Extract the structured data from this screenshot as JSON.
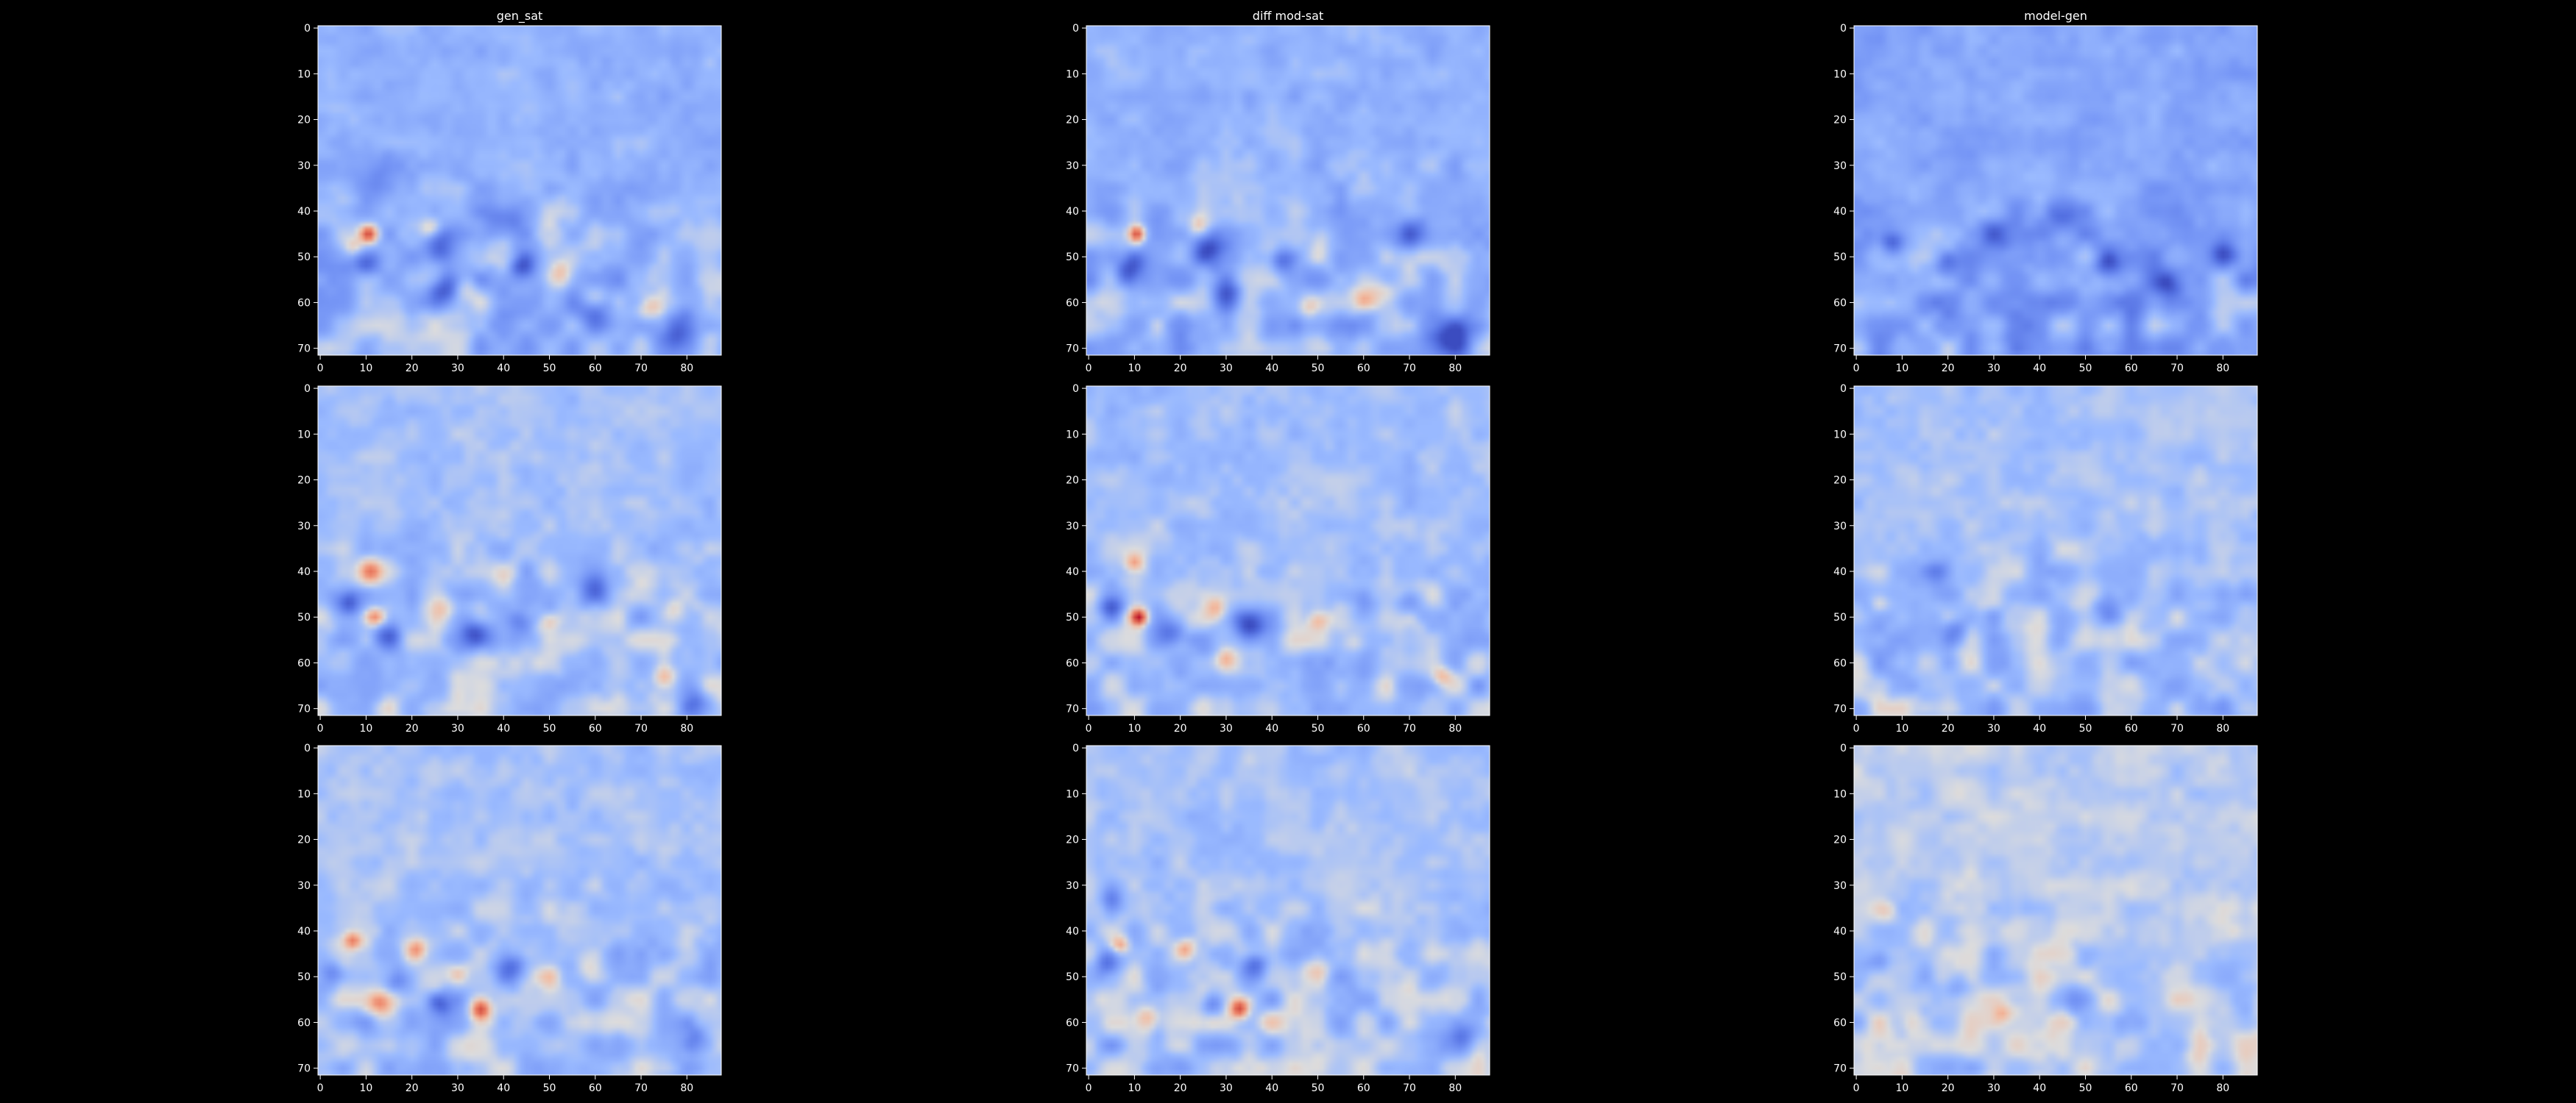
{
  "figure": {
    "background": "#000000",
    "text_color": "#ffffff",
    "colormap": "coolwarm",
    "columns": [
      "gen_sat",
      "diff mod-sat",
      "model-gen"
    ]
  },
  "chart_data": [
    {
      "type": "heatmap",
      "row": 0,
      "col": 0,
      "title": "gen_sat",
      "xlim": [
        0,
        88
      ],
      "ylim": [
        72,
        0
      ],
      "xticks": [
        "0",
        "10",
        "20",
        "30",
        "40",
        "50",
        "60",
        "70",
        "80"
      ],
      "yticks": [
        "0",
        "10",
        "20",
        "30",
        "40",
        "50",
        "60",
        "70"
      ],
      "background_level": -0.3,
      "blobs": [
        [
          10.5,
          45,
          0.95,
          1.4
        ],
        [
          7,
          48,
          0.35,
          1.6
        ],
        [
          24,
          44,
          0.45,
          1.5
        ],
        [
          52,
          54,
          0.55,
          2.2
        ],
        [
          60,
          59,
          0.45,
          2.0
        ],
        [
          72,
          61,
          0.5,
          2.0
        ],
        [
          32,
          57,
          0.35,
          1.8
        ],
        [
          50,
          45,
          0.3,
          2.2
        ],
        [
          40,
          52,
          0.2,
          2.5
        ],
        [
          10,
          51,
          -0.7,
          2.0
        ],
        [
          26,
          48,
          -0.55,
          2.2
        ],
        [
          27,
          57,
          -0.6,
          2.4
        ],
        [
          44,
          52,
          -0.55,
          2.0
        ],
        [
          40,
          42,
          -0.45,
          2.6
        ],
        [
          78,
          66,
          -0.55,
          3.0
        ],
        [
          12,
          32,
          -0.3,
          4.0
        ],
        [
          60,
          62,
          -0.4,
          2.8
        ]
      ]
    },
    {
      "type": "heatmap",
      "row": 0,
      "col": 1,
      "title": "diff mod-sat",
      "xlim": [
        0,
        88
      ],
      "ylim": [
        72,
        0
      ],
      "xticks": [
        "0",
        "10",
        "20",
        "30",
        "40",
        "50",
        "60",
        "70",
        "80"
      ],
      "yticks": [
        "0",
        "10",
        "20",
        "30",
        "40",
        "50",
        "60",
        "70"
      ],
      "background_level": -0.3,
      "blobs": [
        [
          10.5,
          45,
          1.0,
          1.3
        ],
        [
          24,
          43,
          0.45,
          1.5
        ],
        [
          51,
          46,
          0.3,
          2.2
        ],
        [
          60,
          59,
          0.4,
          1.8
        ],
        [
          48,
          61,
          0.3,
          1.6
        ],
        [
          64,
          57,
          0.25,
          2.0
        ],
        [
          10,
          51,
          -0.6,
          2.0
        ],
        [
          26,
          48,
          -0.55,
          2.2
        ],
        [
          42,
          51,
          -0.55,
          2.0
        ],
        [
          80,
          68,
          -0.75,
          2.8
        ],
        [
          70,
          45,
          -0.5,
          2.4
        ],
        [
          30,
          58,
          -0.4,
          2.2
        ],
        [
          8,
          54,
          -0.4,
          1.8
        ]
      ]
    },
    {
      "type": "heatmap",
      "row": 0,
      "col": 2,
      "title": "model-gen",
      "xlim": [
        0,
        88
      ],
      "ylim": [
        72,
        0
      ],
      "xticks": [
        "0",
        "10",
        "20",
        "30",
        "40",
        "50",
        "60",
        "70",
        "80"
      ],
      "yticks": [
        "0",
        "10",
        "20",
        "30",
        "40",
        "50",
        "60",
        "70"
      ],
      "background_level": -0.38,
      "blobs": [
        [
          8,
          47,
          -0.5,
          1.8
        ],
        [
          20,
          52,
          -0.45,
          2.0
        ],
        [
          35,
          55,
          -0.4,
          2.2
        ],
        [
          55,
          52,
          -0.45,
          2.0
        ],
        [
          68,
          56,
          -0.45,
          2.0
        ],
        [
          80,
          49,
          -0.45,
          2.0
        ],
        [
          45,
          42,
          -0.35,
          2.5
        ],
        [
          30,
          45,
          -0.35,
          2.2
        ],
        [
          60,
          60,
          -0.35,
          2.2
        ]
      ]
    },
    {
      "type": "heatmap",
      "row": 1,
      "col": 0,
      "title": "",
      "xlim": [
        0,
        88
      ],
      "ylim": [
        72,
        0
      ],
      "xticks": [
        "0",
        "10",
        "20",
        "30",
        "40",
        "50",
        "60",
        "70",
        "80"
      ],
      "yticks": [
        "0",
        "10",
        "20",
        "30",
        "40",
        "50",
        "60",
        "70"
      ],
      "background_level": -0.22,
      "blobs": [
        [
          11,
          40,
          0.6,
          1.8
        ],
        [
          12,
          50,
          0.75,
          1.5
        ],
        [
          27,
          48,
          0.35,
          2.0
        ],
        [
          50,
          51,
          0.55,
          1.6
        ],
        [
          77,
          49,
          0.3,
          1.8
        ],
        [
          75,
          63,
          0.4,
          1.6
        ],
        [
          40,
          41,
          0.25,
          2.2
        ],
        [
          6,
          47,
          -0.6,
          1.8
        ],
        [
          15,
          54,
          -0.5,
          2.0
        ],
        [
          34,
          54,
          -0.7,
          2.2
        ],
        [
          44,
          51,
          -0.45,
          2.0
        ],
        [
          60,
          44,
          -0.45,
          2.4
        ],
        [
          82,
          69,
          -0.45,
          2.2
        ]
      ]
    },
    {
      "type": "heatmap",
      "row": 1,
      "col": 1,
      "title": "",
      "xlim": [
        0,
        88
      ],
      "ylim": [
        72,
        0
      ],
      "xticks": [
        "0",
        "10",
        "20",
        "30",
        "40",
        "50",
        "60",
        "70",
        "80"
      ],
      "yticks": [
        "0",
        "10",
        "20",
        "30",
        "40",
        "50",
        "60",
        "70"
      ],
      "background_level": -0.22,
      "blobs": [
        [
          10,
          38,
          0.55,
          1.4
        ],
        [
          11,
          50,
          1.0,
          1.3
        ],
        [
          28,
          48,
          0.45,
          1.8
        ],
        [
          50,
          51,
          0.5,
          1.6
        ],
        [
          77,
          63,
          0.45,
          1.6
        ],
        [
          30,
          59,
          0.3,
          1.5
        ],
        [
          58,
          56,
          0.25,
          2.0
        ],
        [
          5,
          48,
          -0.5,
          1.8
        ],
        [
          18,
          53,
          -0.45,
          2.0
        ],
        [
          35,
          52,
          -0.65,
          2.2
        ],
        [
          70,
          47,
          -0.45,
          2.0
        ],
        [
          60,
          46,
          -0.35,
          2.2
        ]
      ]
    },
    {
      "type": "heatmap",
      "row": 1,
      "col": 2,
      "title": "",
      "xlim": [
        0,
        88
      ],
      "ylim": [
        72,
        0
      ],
      "xticks": [
        "0",
        "10",
        "20",
        "30",
        "40",
        "50",
        "60",
        "70",
        "80"
      ],
      "yticks": [
        "0",
        "10",
        "20",
        "30",
        "40",
        "50",
        "60",
        "70"
      ],
      "background_level": -0.2,
      "blobs": [
        [
          5,
          47,
          0.25,
          1.5
        ],
        [
          30,
          50,
          -0.45,
          1.6
        ],
        [
          18,
          40,
          -0.35,
          2.0
        ],
        [
          22,
          53,
          -0.3,
          2.0
        ],
        [
          55,
          48,
          -0.3,
          2.2
        ],
        [
          44,
          55,
          -0.25,
          2.2
        ],
        [
          80,
          70,
          -0.35,
          2.0
        ]
      ]
    },
    {
      "type": "heatmap",
      "row": 2,
      "col": 0,
      "title": "",
      "xlim": [
        0,
        88
      ],
      "ylim": [
        72,
        0
      ],
      "xticks": [
        "0",
        "10",
        "20",
        "30",
        "40",
        "50",
        "60",
        "70",
        "80"
      ],
      "yticks": [
        "0",
        "10",
        "20",
        "30",
        "40",
        "50",
        "60",
        "70"
      ],
      "background_level": -0.2,
      "blobs": [
        [
          7,
          42,
          0.6,
          1.4
        ],
        [
          21,
          44,
          0.55,
          1.6
        ],
        [
          35,
          57,
          0.85,
          1.6
        ],
        [
          13,
          56,
          0.5,
          2.0
        ],
        [
          50,
          50,
          0.35,
          2.0
        ],
        [
          58,
          48,
          0.25,
          2.0
        ],
        [
          30,
          49,
          0.3,
          1.6
        ],
        [
          3,
          49,
          -0.35,
          2.0
        ],
        [
          17,
          51,
          -0.4,
          2.0
        ],
        [
          26,
          56,
          -0.55,
          1.8
        ],
        [
          42,
          48,
          -0.5,
          2.4
        ],
        [
          82,
          64,
          -0.45,
          2.5
        ]
      ]
    },
    {
      "type": "heatmap",
      "row": 2,
      "col": 1,
      "title": "",
      "xlim": [
        0,
        88
      ],
      "ylim": [
        72,
        0
      ],
      "xticks": [
        "0",
        "10",
        "20",
        "30",
        "40",
        "50",
        "60",
        "70",
        "80"
      ],
      "yticks": [
        "0",
        "10",
        "20",
        "30",
        "40",
        "50",
        "60",
        "70"
      ],
      "background_level": -0.2,
      "blobs": [
        [
          7,
          43,
          0.6,
          1.3
        ],
        [
          21,
          44,
          0.5,
          1.5
        ],
        [
          33,
          57,
          0.95,
          1.5
        ],
        [
          13,
          59,
          0.4,
          1.8
        ],
        [
          50,
          48,
          0.3,
          2.0
        ],
        [
          40,
          60,
          0.2,
          1.8
        ],
        [
          4,
          47,
          -0.45,
          1.8
        ],
        [
          36,
          47,
          -0.55,
          2.0
        ],
        [
          27,
          56,
          -0.5,
          1.8
        ],
        [
          5,
          33,
          -0.35,
          1.8
        ],
        [
          82,
          63,
          -0.4,
          2.2
        ]
      ]
    },
    {
      "type": "heatmap",
      "row": 2,
      "col": 2,
      "title": "",
      "xlim": [
        0,
        88
      ],
      "ylim": [
        72,
        0
      ],
      "xticks": [
        "0",
        "10",
        "20",
        "30",
        "40",
        "50",
        "60",
        "70",
        "80"
      ],
      "yticks": [
        "0",
        "10",
        "20",
        "30",
        "40",
        "50",
        "60",
        "70"
      ],
      "background_level": -0.12,
      "blobs": [
        [
          32,
          58,
          0.35,
          1.4
        ],
        [
          12,
          60,
          0.2,
          1.8
        ],
        [
          7,
          36,
          0.15,
          1.6
        ],
        [
          5,
          47,
          -0.3,
          1.8
        ],
        [
          22,
          52,
          -0.25,
          2.0
        ],
        [
          48,
          55,
          -0.25,
          2.2
        ],
        [
          80,
          70,
          -0.25,
          2.0
        ]
      ]
    }
  ]
}
